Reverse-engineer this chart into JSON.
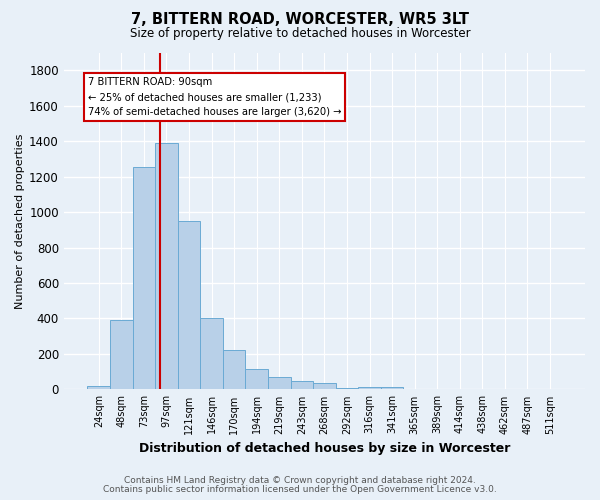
{
  "title": "7, BITTERN ROAD, WORCESTER, WR5 3LT",
  "subtitle": "Size of property relative to detached houses in Worcester",
  "xlabel": "Distribution of detached houses by size in Worcester",
  "ylabel": "Number of detached properties",
  "footnote1": "Contains HM Land Registry data © Crown copyright and database right 2024.",
  "footnote2": "Contains public sector information licensed under the Open Government Licence v3.0.",
  "categories": [
    "24sqm",
    "48sqm",
    "73sqm",
    "97sqm",
    "121sqm",
    "146sqm",
    "170sqm",
    "194sqm",
    "219sqm",
    "243sqm",
    "268sqm",
    "292sqm",
    "316sqm",
    "341sqm",
    "365sqm",
    "389sqm",
    "414sqm",
    "438sqm",
    "462sqm",
    "487sqm",
    "511sqm"
  ],
  "values": [
    20,
    390,
    1255,
    1390,
    950,
    405,
    225,
    115,
    70,
    50,
    35,
    10,
    15,
    15,
    5,
    5,
    3,
    2,
    1,
    1,
    1
  ],
  "bar_color": "#b8d0e8",
  "bar_edgecolor": "#6aaad4",
  "bg_color": "#e8f0f8",
  "grid_color": "#ffffff",
  "annotation_title": "7 BITTERN ROAD: 90sqm",
  "annotation_line1": "← 25% of detached houses are smaller (1,233)",
  "annotation_line2": "74% of semi-detached houses are larger (3,620) →",
  "annotation_box_color": "#ffffff",
  "annotation_border_color": "#cc0000",
  "red_line_color": "#cc0000",
  "red_line_index": 2.72,
  "ylim": [
    0,
    1900
  ],
  "yticks": [
    0,
    200,
    400,
    600,
    800,
    1000,
    1200,
    1400,
    1600,
    1800
  ]
}
